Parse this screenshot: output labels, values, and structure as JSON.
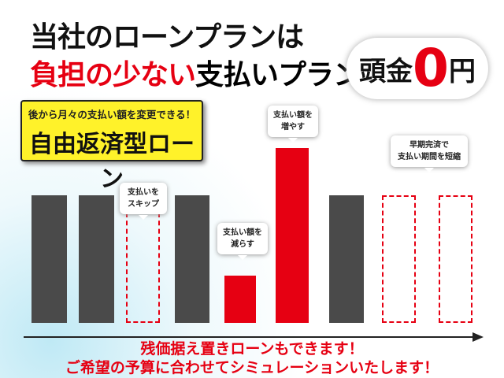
{
  "header": {
    "line1": "当社のローンプランは",
    "line2_red": "負担の少ない",
    "line2_black": "支払いプラン"
  },
  "badge": {
    "prefix": "頭金",
    "number": "0",
    "suffix": "円"
  },
  "feature": {
    "subtitle": "後から月々の支払い額を変更できる！",
    "title": "自由返済型ローン"
  },
  "callouts": [
    {
      "lines": [
        "支払いを",
        "スキップ"
      ]
    },
    {
      "lines": [
        "支払い額を",
        "減らす"
      ]
    },
    {
      "lines": [
        "支払い額を",
        "増やす"
      ]
    },
    {
      "lines": [
        "早期完済で",
        "支払い期間を短縮"
      ]
    }
  ],
  "footer": {
    "line1": "残価据え置きローンもできます！",
    "line2": "ご希望の予算に合わせてシミュレーションいたします！"
  }
}
